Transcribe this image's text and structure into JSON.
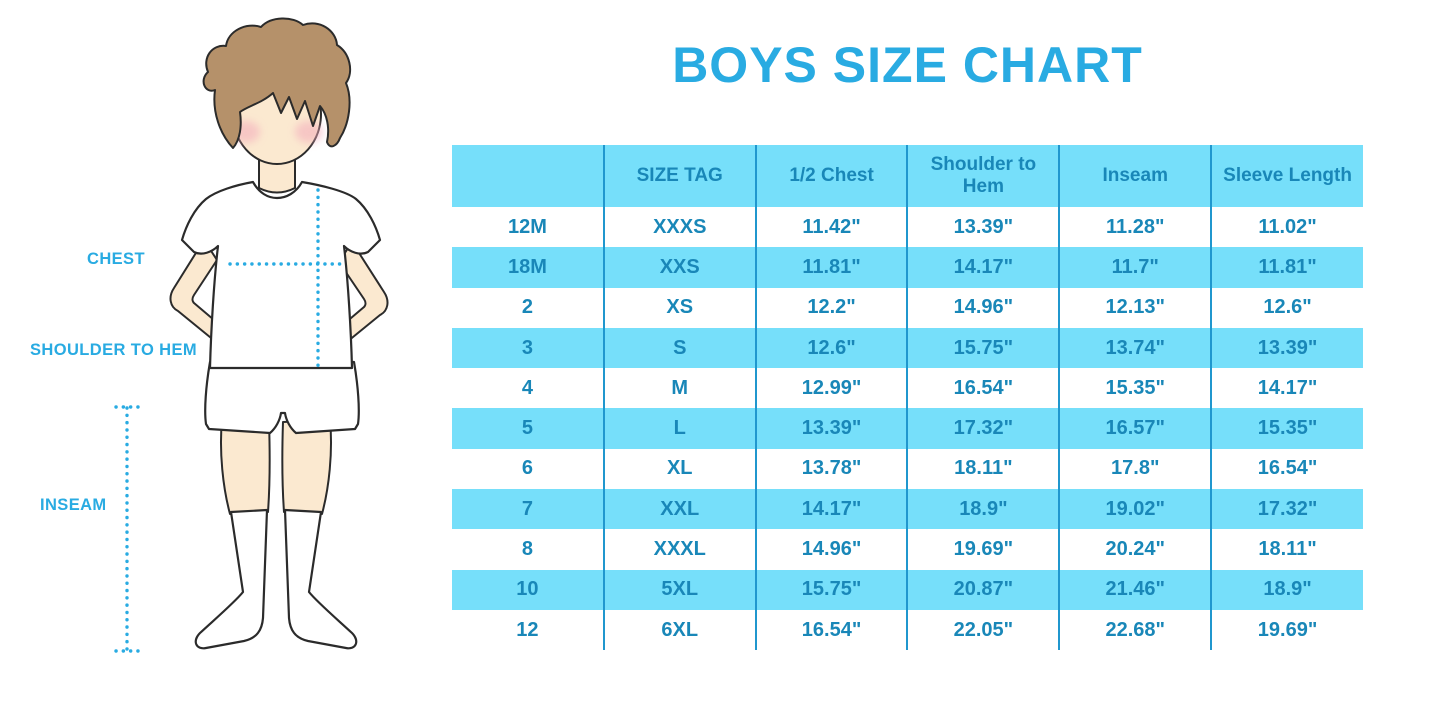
{
  "title": "BOYS SIZE CHART",
  "figure_labels": {
    "chest": "CHEST",
    "shoulder_to_hem": "SHOULDER TO HEM",
    "inseam": "INSEAM"
  },
  "colors": {
    "title_blue": "#29ABE2",
    "label_blue": "#29ABE2",
    "cell_text_blue": "#1987B8",
    "row_highlight": "#76DFFA",
    "column_divider": "#2097CE",
    "dotted_line": "#29ABE2",
    "skin": "#FBE9D0",
    "hair": "#B5916A",
    "cheek": "#F3AABB",
    "outline": "#2b2b2b"
  },
  "chart_data": {
    "type": "table",
    "title": "BOYS SIZE CHART",
    "columns": [
      "",
      "SIZE TAG",
      "1/2 Chest",
      "Shoulder to Hem",
      "Inseam",
      "Sleeve Length"
    ],
    "rows": [
      [
        "12M",
        "XXXS",
        "11.42\"",
        "13.39\"",
        "11.28\"",
        "11.02\""
      ],
      [
        "18M",
        "XXS",
        "11.81\"",
        "14.17\"",
        "11.7\"",
        "11.81\""
      ],
      [
        "2",
        "XS",
        "12.2\"",
        "14.96\"",
        "12.13\"",
        "12.6\""
      ],
      [
        "3",
        "S",
        "12.6\"",
        "15.75\"",
        "13.74\"",
        "13.39\""
      ],
      [
        "4",
        "M",
        "12.99\"",
        "16.54\"",
        "15.35\"",
        "14.17\""
      ],
      [
        "5",
        "L",
        "13.39\"",
        "17.32\"",
        "16.57\"",
        "15.35\""
      ],
      [
        "6",
        "XL",
        "13.78\"",
        "18.11\"",
        "17.8\"",
        "16.54\""
      ],
      [
        "7",
        "XXL",
        "14.17\"",
        "18.9\"",
        "19.02\"",
        "17.32\""
      ],
      [
        "8",
        "XXXL",
        "14.96\"",
        "19.69\"",
        "20.24\"",
        "18.11\""
      ],
      [
        "10",
        "5XL",
        "15.75\"",
        "20.87\"",
        "21.46\"",
        "18.9\""
      ],
      [
        "12",
        "6XL",
        "16.54\"",
        "22.05\"",
        "22.68\"",
        "19.69\""
      ]
    ]
  }
}
